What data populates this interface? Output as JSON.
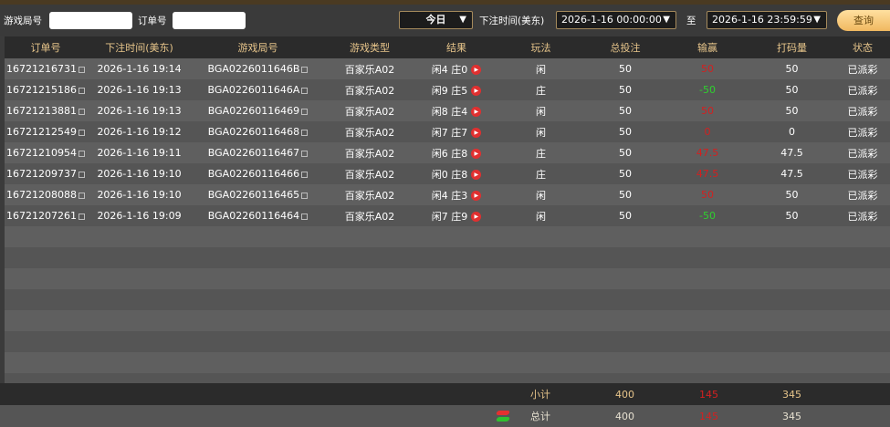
{
  "filter": {
    "game_no_label": "游戏局号",
    "game_no_value": "",
    "order_no_label": "订单号",
    "order_no_value": "",
    "period": "今日",
    "time_label": "下注时间(美东)",
    "start": "2026-1-16 00:00:00",
    "to_label": "至",
    "end": "2026-1-16 23:59:59",
    "query_label": "查询"
  },
  "columns": [
    "订单号",
    "下注时间(美东)",
    "游戏局号",
    "游戏类型",
    "结果",
    "玩法",
    "总投注",
    "输赢",
    "打码量",
    "状态"
  ],
  "rows": [
    [
      "16721216731",
      "2026-1-16 19:14",
      "BGA0226011646B",
      "百家乐A02",
      "闲4 庄0",
      "闲",
      "50",
      "50",
      "50",
      "已派彩"
    ],
    [
      "16721215186",
      "2026-1-16 19:13",
      "BGA0226011646A",
      "百家乐A02",
      "闲9 庄5",
      "庄",
      "50",
      "-50",
      "50",
      "已派彩"
    ],
    [
      "16721213881",
      "2026-1-16 19:13",
      "BGA02260116469",
      "百家乐A02",
      "闲8 庄4",
      "闲",
      "50",
      "50",
      "50",
      "已派彩"
    ],
    [
      "16721212549",
      "2026-1-16 19:12",
      "BGA02260116468",
      "百家乐A02",
      "闲7 庄7",
      "闲",
      "50",
      "0",
      "0",
      "已派彩"
    ],
    [
      "16721210954",
      "2026-1-16 19:11",
      "BGA02260116467",
      "百家乐A02",
      "闲6 庄8",
      "庄",
      "50",
      "47.5",
      "47.5",
      "已派彩"
    ],
    [
      "16721209737",
      "2026-1-16 19:10",
      "BGA02260116466",
      "百家乐A02",
      "闲0 庄8",
      "庄",
      "50",
      "47.5",
      "47.5",
      "已派彩"
    ],
    [
      "16721208088",
      "2026-1-16 19:10",
      "BGA02260116465",
      "百家乐A02",
      "闲4 庄3",
      "闲",
      "50",
      "50",
      "50",
      "已派彩"
    ],
    [
      "16721207261",
      "2026-1-16 19:09",
      "BGA02260116464",
      "百家乐A02",
      "闲7 庄9",
      "闲",
      "50",
      "-50",
      "50",
      "已派彩"
    ]
  ],
  "winloss_colors": [
    "red",
    "green",
    "red",
    "red",
    "red",
    "red",
    "red",
    "green"
  ],
  "subtotal": {
    "label": "小计",
    "bet": "400",
    "winloss": "145",
    "code": "345"
  },
  "total": {
    "label": "总计",
    "bet": "400",
    "winloss": "145",
    "code": "345"
  },
  "colors": {
    "accent": "#e6c48a",
    "win": "#d32020",
    "loss": "#2fd02f"
  }
}
